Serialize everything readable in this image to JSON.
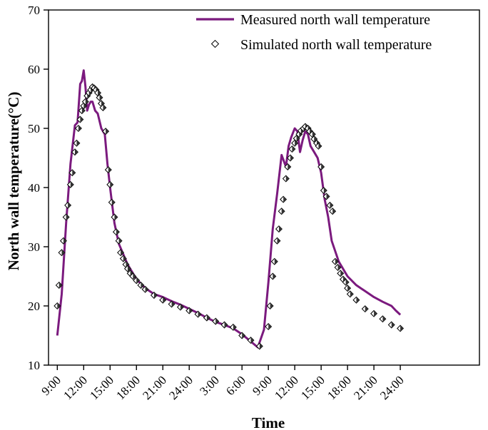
{
  "chart_data": {
    "type": "line",
    "title": "",
    "xlabel": "Time",
    "ylabel": "North wall temperature(°C)",
    "ylim": [
      10,
      70
    ],
    "yticks": [
      10,
      20,
      30,
      40,
      50,
      60,
      70
    ],
    "xlim": [
      8,
      57
    ],
    "x_unit": "hours from 0:00 of day 1",
    "x_tick_hours": [
      9,
      12,
      15,
      18,
      21,
      24,
      27,
      30,
      33,
      36,
      39,
      42,
      45,
      48
    ],
    "x_tick_labels": [
      "9:00",
      "12:00",
      "15:00",
      "18:00",
      "21:00",
      "24:00",
      "3:00",
      "6:00",
      "9:00",
      "12:00",
      "15:00",
      "18:00",
      "21:00",
      "24:00"
    ],
    "grid": false,
    "legend_position": "top-right",
    "colors": {
      "measured": "#7b1a7e",
      "simulated_fill": "#ffffff",
      "simulated_edge": "#000000"
    },
    "series": [
      {
        "name": "Measured north wall temperature",
        "style": "line",
        "x": [
          9.0,
          9.5,
          10.0,
          10.5,
          11.0,
          11.3,
          11.6,
          11.8,
          12.0,
          12.2,
          12.4,
          12.6,
          12.8,
          13.0,
          13.3,
          13.6,
          14.0,
          14.4,
          14.7,
          15.0,
          15.5,
          16.0,
          17.0,
          18.0,
          19.0,
          20.0,
          21.0,
          22.0,
          23.0,
          24.0,
          25.0,
          26.0,
          27.0,
          28.0,
          29.0,
          30.0,
          31.0,
          31.8,
          32.5,
          33.0,
          33.5,
          34.0,
          34.5,
          35.0,
          35.3,
          35.6,
          36.0,
          36.3,
          36.6,
          36.9,
          37.2,
          37.5,
          37.8,
          38.2,
          38.6,
          39.0,
          39.4,
          39.8,
          40.2,
          41.0,
          42.0,
          43.0,
          44.0,
          45.0,
          46.0,
          47.0,
          47.5,
          48.0
        ],
        "y": [
          15.0,
          22.0,
          34.0,
          44.0,
          50.5,
          51.0,
          57.5,
          58.0,
          59.8,
          57.0,
          53.0,
          54.0,
          54.5,
          54.5,
          53.0,
          52.5,
          50.0,
          49.0,
          44.0,
          40.0,
          34.0,
          30.5,
          27.0,
          24.5,
          23.0,
          22.0,
          21.5,
          20.8,
          20.2,
          19.5,
          18.8,
          18.0,
          17.3,
          16.8,
          16.2,
          15.2,
          14.0,
          13.0,
          16.0,
          24.0,
          33.0,
          39.0,
          45.5,
          43.5,
          47.0,
          48.5,
          50.0,
          49.5,
          46.0,
          48.0,
          49.5,
          49.0,
          47.0,
          46.0,
          45.0,
          42.5,
          38.0,
          35.0,
          31.0,
          27.5,
          25.0,
          23.5,
          22.5,
          21.5,
          20.7,
          20.0,
          19.2,
          18.5
        ]
      },
      {
        "name": "Simulated north wall temperature",
        "style": "markers",
        "x": [
          9.0,
          9.2,
          9.5,
          9.7,
          10.0,
          10.2,
          10.5,
          10.7,
          11.0,
          11.2,
          11.4,
          11.6,
          11.8,
          12.0,
          12.2,
          12.4,
          12.6,
          12.8,
          13.0,
          13.2,
          13.4,
          13.6,
          13.8,
          14.0,
          14.2,
          14.5,
          14.8,
          15.0,
          15.2,
          15.5,
          15.7,
          16.0,
          16.2,
          16.5,
          16.8,
          17.0,
          17.3,
          17.6,
          18.0,
          18.5,
          19.0,
          20.0,
          21.0,
          22.0,
          23.0,
          24.0,
          25.0,
          26.0,
          27.0,
          28.0,
          29.0,
          30.0,
          31.0,
          32.0,
          33.0,
          33.2,
          33.5,
          33.7,
          34.0,
          34.2,
          34.5,
          34.7,
          35.0,
          35.2,
          35.5,
          35.7,
          36.0,
          36.2,
          36.5,
          36.7,
          37.0,
          37.2,
          37.5,
          37.7,
          38.0,
          38.2,
          38.5,
          38.7,
          39.0,
          39.3,
          39.6,
          40.0,
          40.3,
          40.6,
          40.9,
          41.2,
          41.5,
          41.8,
          42.0,
          42.3,
          43.0,
          44.0,
          45.0,
          46.0,
          47.0,
          48.0
        ],
        "y": [
          20.0,
          23.5,
          29.0,
          31.0,
          35.0,
          37.0,
          40.5,
          42.5,
          46.0,
          47.5,
          50.0,
          51.5,
          53.0,
          53.8,
          54.5,
          55.5,
          56.0,
          56.5,
          57.0,
          56.8,
          56.5,
          56.0,
          55.2,
          54.2,
          53.5,
          49.5,
          43.0,
          40.5,
          37.5,
          35.0,
          32.5,
          31.0,
          29.0,
          28.0,
          27.0,
          26.3,
          25.5,
          25.0,
          24.3,
          23.5,
          22.8,
          21.8,
          21.0,
          20.3,
          19.8,
          19.2,
          18.6,
          18.0,
          17.4,
          16.8,
          16.4,
          15.0,
          14.2,
          13.2,
          16.5,
          20.0,
          25.0,
          27.5,
          31.0,
          33.0,
          36.0,
          38.0,
          41.5,
          43.5,
          45.0,
          46.5,
          47.5,
          48.3,
          49.0,
          49.6,
          50.0,
          50.3,
          50.0,
          49.5,
          49.0,
          48.2,
          47.5,
          47.0,
          43.5,
          39.5,
          38.5,
          37.0,
          36.0,
          27.5,
          26.5,
          25.5,
          24.5,
          24.0,
          23.0,
          22.0,
          21.0,
          19.5,
          18.7,
          17.8,
          16.8,
          16.2
        ]
      }
    ]
  }
}
